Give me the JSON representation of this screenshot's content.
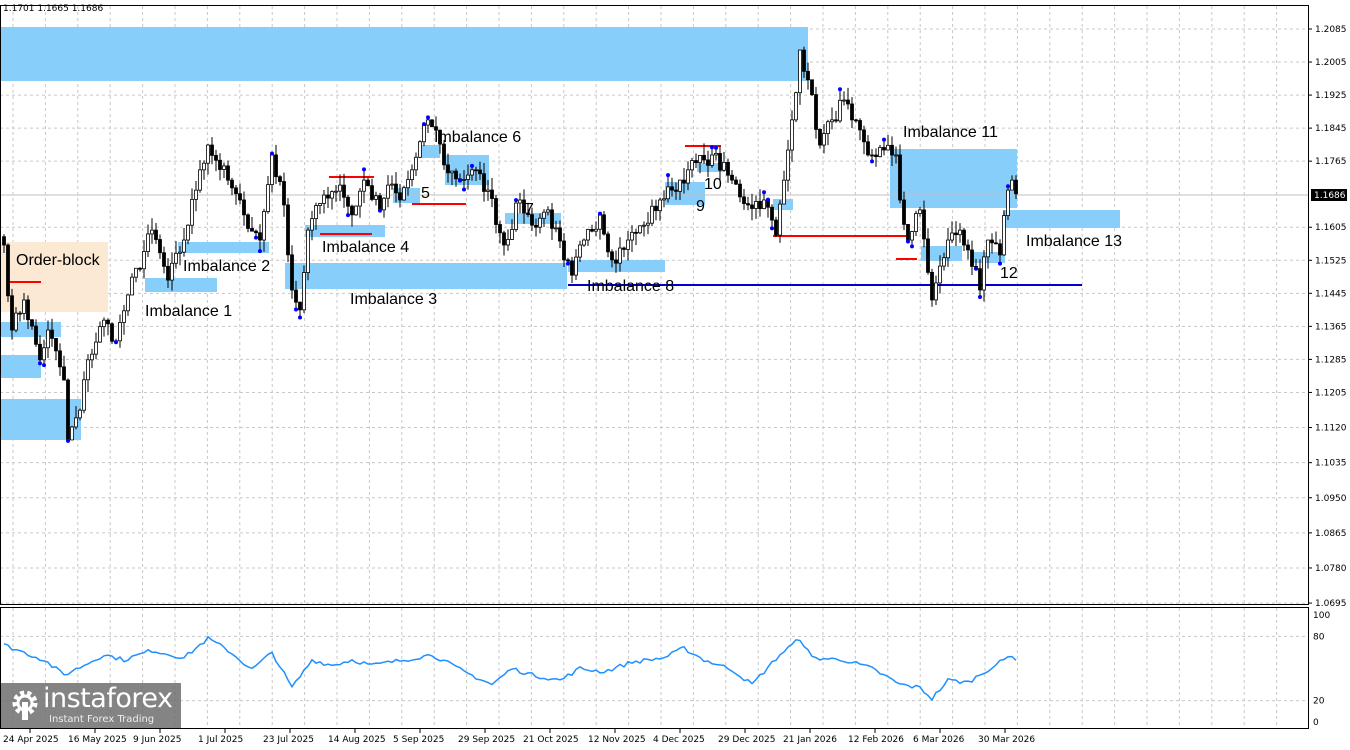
{
  "header": {
    "ohlc_text": "1.1701 1.1665 1.1686"
  },
  "logo": {
    "name": "instaforex",
    "tagline": "Instant Forex Trading"
  },
  "colors": {
    "zone": "#87cefa",
    "order_block": "#fbe9d4",
    "level_red": "#ff0000",
    "level_blue": "#0000cd",
    "indicator": "#1e90ff",
    "bull": "#ffffff",
    "bear": "#000000",
    "swing_dot": "#0000ff"
  },
  "chart_data": {
    "type": "candlestick",
    "current_price": 1.1686,
    "current_price_label": "1.1686",
    "ylim": [
      1.0695,
      1.2085
    ],
    "y_ticks": [
      "1.2085",
      "1.2005",
      "1.1925",
      "1.1845",
      "1.1765",
      "1.1605",
      "1.1525",
      "1.1445",
      "1.1365",
      "1.1285",
      "1.1205",
      "1.1120",
      "1.1035",
      "1.0950",
      "1.0865",
      "1.0780",
      "1.0695"
    ],
    "x_ticks": [
      "24 Apr 2025",
      "16 May 2025",
      "9 Jun 2025",
      "1 Jul 2025",
      "23 Jul 2025",
      "14 Aug 2025",
      "5 Sep 2025",
      "29 Sep 2025",
      "21 Oct 2025",
      "12 Nov 2025",
      "4 Dec 2025",
      "29 Dec 2025",
      "21 Jan 2026",
      "12 Feb 2026",
      "6 Mar 2026",
      "30 Mar 2026"
    ],
    "grid": true,
    "close_path": [
      [
        0,
        1.1562
      ],
      [
        2,
        1.1356
      ],
      [
        5,
        1.1429
      ],
      [
        9,
        1.1284
      ],
      [
        11,
        1.1356
      ],
      [
        15,
        1.1235
      ],
      [
        16,
        1.109
      ],
      [
        19,
        1.1162
      ],
      [
        21,
        1.1284
      ],
      [
        25,
        1.138
      ],
      [
        28,
        1.133
      ],
      [
        31,
        1.1441
      ],
      [
        37,
        1.1598
      ],
      [
        41,
        1.1477
      ],
      [
        45,
        1.1574
      ],
      [
        49,
        1.1744
      ],
      [
        51,
        1.1804
      ],
      [
        56,
        1.1719
      ],
      [
        60,
        1.1635
      ],
      [
        64,
        1.1574
      ],
      [
        67,
        1.178
      ],
      [
        70,
        1.1659
      ],
      [
        72,
        1.1453
      ],
      [
        74,
        1.1405
      ],
      [
        76,
        1.1598
      ],
      [
        80,
        1.1683
      ],
      [
        84,
        1.1707
      ],
      [
        87,
        1.1635
      ],
      [
        90,
        1.1719
      ],
      [
        94,
        1.1647
      ],
      [
        96,
        1.1707
      ],
      [
        99,
        1.1671
      ],
      [
        102,
        1.1744
      ],
      [
        106,
        1.1865
      ],
      [
        108,
        1.184
      ],
      [
        110,
        1.1756
      ],
      [
        114,
        1.1719
      ],
      [
        117,
        1.1744
      ],
      [
        121,
        1.1695
      ],
      [
        125,
        1.1562
      ],
      [
        129,
        1.1671
      ],
      [
        132,
        1.161
      ],
      [
        136,
        1.1647
      ],
      [
        140,
        1.1526
      ],
      [
        142,
        1.1489
      ],
      [
        145,
        1.1574
      ],
      [
        149,
        1.1635
      ],
      [
        152,
        1.1526
      ],
      [
        156,
        1.1574
      ],
      [
        160,
        1.161
      ],
      [
        164,
        1.1671
      ],
      [
        167,
        1.1695
      ],
      [
        171,
        1.1744
      ],
      [
        175,
        1.1768
      ],
      [
        177,
        1.178
      ],
      [
        181,
        1.1731
      ],
      [
        186,
        1.1659
      ],
      [
        190,
        1.1671
      ],
      [
        193,
        1.1586
      ],
      [
        195,
        1.1719
      ],
      [
        197,
        1.1865
      ],
      [
        199,
        1.2034
      ],
      [
        201,
        1.1962
      ],
      [
        204,
        1.1804
      ],
      [
        207,
        1.1865
      ],
      [
        210,
        1.1913
      ],
      [
        212,
        1.1865
      ],
      [
        216,
        1.178
      ],
      [
        220,
        1.1792
      ],
      [
        223,
        1.178
      ],
      [
        224,
        1.1671
      ],
      [
        226,
        1.1574
      ],
      [
        229,
        1.1647
      ],
      [
        232,
        1.1429
      ],
      [
        236,
        1.1574
      ],
      [
        239,
        1.1598
      ],
      [
        241,
        1.155
      ],
      [
        244,
        1.1453
      ],
      [
        246,
        1.1574
      ],
      [
        249,
        1.1538
      ],
      [
        251,
        1.1695
      ],
      [
        252,
        1.1719
      ],
      [
        253,
        1.1686
      ]
    ],
    "indicator": {
      "levels": [
        "100",
        "80",
        "20",
        "0"
      ],
      "ylim": [
        0,
        100
      ],
      "path": [
        [
          0,
          72
        ],
        [
          10,
          58
        ],
        [
          15,
          44
        ],
        [
          20,
          53
        ],
        [
          25,
          63
        ],
        [
          30,
          58
        ],
        [
          37,
          67
        ],
        [
          45,
          60
        ],
        [
          51,
          78
        ],
        [
          56,
          67
        ],
        [
          62,
          49
        ],
        [
          67,
          65
        ],
        [
          72,
          32
        ],
        [
          77,
          58
        ],
        [
          82,
          53
        ],
        [
          87,
          58
        ],
        [
          92,
          53
        ],
        [
          100,
          58
        ],
        [
          107,
          63
        ],
        [
          115,
          47
        ],
        [
          122,
          35
        ],
        [
          127,
          50
        ],
        [
          132,
          44
        ],
        [
          139,
          39
        ],
        [
          144,
          50
        ],
        [
          150,
          47
        ],
        [
          157,
          56
        ],
        [
          165,
          60
        ],
        [
          170,
          69
        ],
        [
          175,
          58
        ],
        [
          182,
          49
        ],
        [
          187,
          35
        ],
        [
          194,
          63
        ],
        [
          199,
          78
        ],
        [
          202,
          60
        ],
        [
          210,
          58
        ],
        [
          217,
          50
        ],
        [
          224,
          35
        ],
        [
          229,
          32
        ],
        [
          232,
          22
        ],
        [
          236,
          39
        ],
        [
          241,
          37
        ],
        [
          246,
          49
        ],
        [
          250,
          58
        ],
        [
          252,
          63
        ],
        [
          253,
          58
        ]
      ]
    },
    "annotations": {
      "order_block": "Order-block",
      "imb1": "Imbalance 1",
      "imb2": "Imbalance 2",
      "imb3": "Imbalance 3",
      "imb4": "Imbalance 4",
      "imb5": "5",
      "imb6": "Imbalance 6",
      "imb7": "7",
      "imb8": "Imbalance 8",
      "imb9": "9",
      "imb10": "10",
      "imb11": "Imbalance 11",
      "imb12": "12",
      "imb13": "Imbalance 13"
    }
  }
}
